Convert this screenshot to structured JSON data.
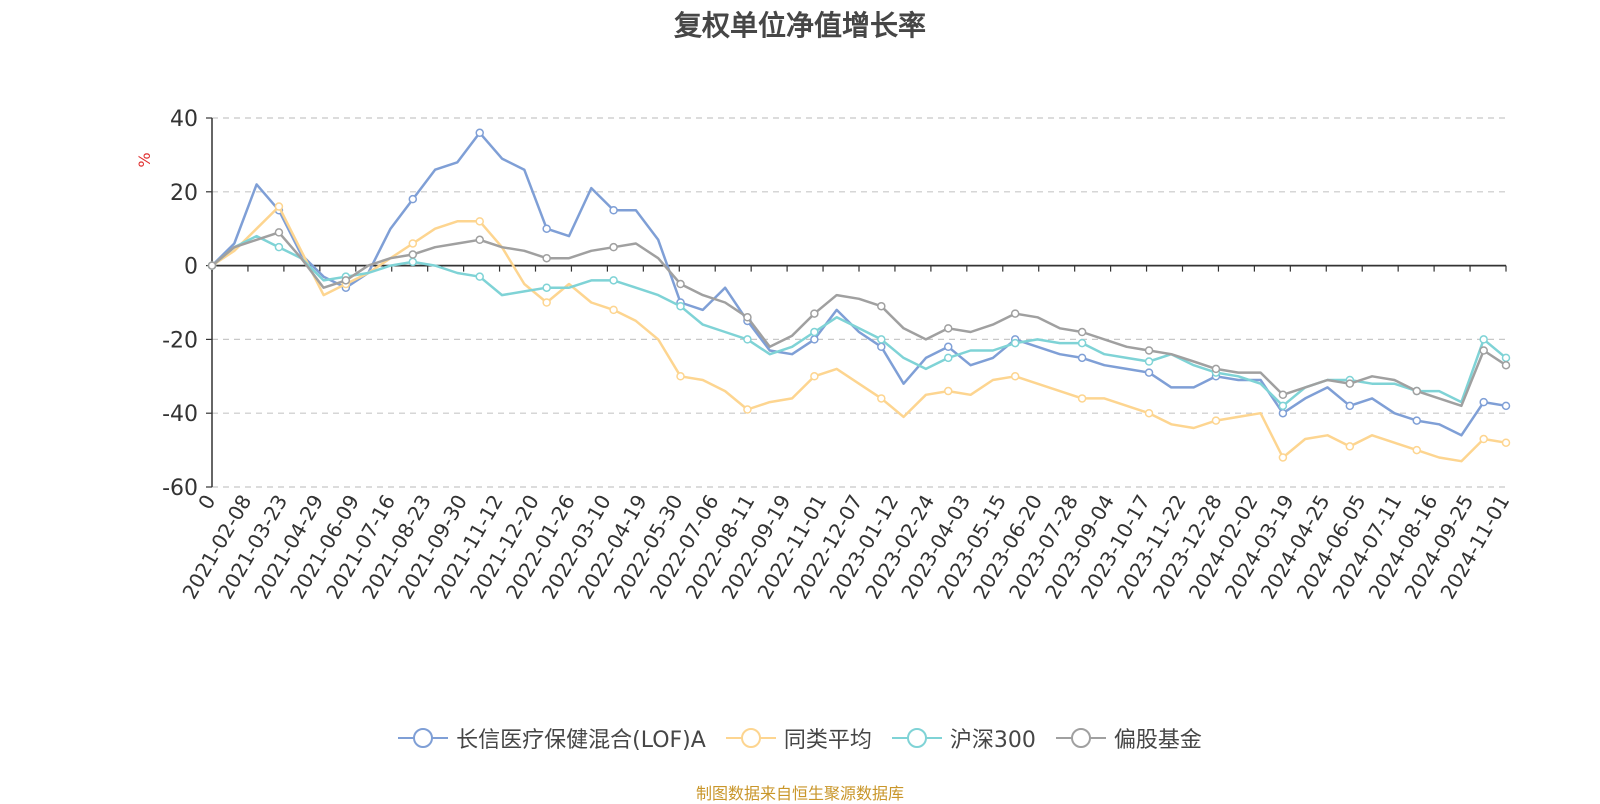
{
  "page": {
    "title": "复权单位净值增长率",
    "source": "制图数据来自恒生聚源数据库"
  },
  "chart_data": {
    "type": "line",
    "title": "复权单位净值增长率",
    "ylabel": "%",
    "xlabel": "",
    "ylim": [
      -60,
      40
    ],
    "yticks": [
      40,
      20,
      0,
      -20,
      -40,
      -60
    ],
    "grid": true,
    "legend_position": "bottom",
    "x_tick_labels": [
      "0",
      "2021-02-08",
      "2021-03-23",
      "2021-04-29",
      "2021-06-09",
      "2021-07-16",
      "2021-08-23",
      "2021-09-30",
      "2021-11-12",
      "2021-12-20",
      "2022-01-26",
      "2022-03-10",
      "2022-04-19",
      "2022-05-30",
      "2022-07-06",
      "2022-08-11",
      "2022-09-19",
      "2022-11-01",
      "2022-12-07",
      "2023-01-12",
      "2023-02-24",
      "2023-04-03",
      "2023-05-15",
      "2023-06-20",
      "2023-07-28",
      "2023-09-04",
      "2023-10-17",
      "2023-11-22",
      "2023-12-28",
      "2024-02-02",
      "2024-03-19",
      "2024-04-25",
      "2024-06-05",
      "2024-07-11",
      "2024-08-16",
      "2024-09-25",
      "2024-11-01"
    ],
    "series": [
      {
        "name": "长信医疗保健混合(LOF)A",
        "color": "#7f9fd6",
        "values": [
          0,
          6,
          22,
          15,
          3,
          -3,
          -6,
          -2,
          10,
          18,
          26,
          28,
          36,
          29,
          26,
          10,
          8,
          21,
          15,
          15,
          7,
          -10,
          -12,
          -6,
          -15,
          -23,
          -24,
          -20,
          -12,
          -18,
          -22,
          -32,
          -25,
          -22,
          -27,
          -25,
          -20,
          -22,
          -24,
          -25,
          -27,
          -28,
          -29,
          -33,
          -33,
          -30,
          -31,
          -31,
          -40,
          -36,
          -33,
          -38,
          -36,
          -40,
          -42,
          -43,
          -46,
          -37,
          -38
        ]
      },
      {
        "name": "同类平均",
        "color": "#fdd590",
        "values": [
          0,
          4,
          10,
          16,
          4,
          -8,
          -5,
          -2,
          2,
          6,
          10,
          12,
          12,
          5,
          -5,
          -10,
          -5,
          -10,
          -12,
          -15,
          -20,
          -30,
          -31,
          -34,
          -39,
          -37,
          -36,
          -30,
          -28,
          -32,
          -36,
          -41,
          -35,
          -34,
          -35,
          -31,
          -30,
          -32,
          -34,
          -36,
          -36,
          -38,
          -40,
          -43,
          -44,
          -42,
          -41,
          -40,
          -52,
          -47,
          -46,
          -49,
          -46,
          -48,
          -50,
          -52,
          -53,
          -47,
          -48
        ]
      },
      {
        "name": "沪深300",
        "color": "#7fd3d6",
        "values": [
          0,
          5,
          8,
          5,
          2,
          -4,
          -3,
          -2,
          0,
          1,
          0,
          -2,
          -3,
          -8,
          -7,
          -6,
          -6,
          -4,
          -4,
          -6,
          -8,
          -11,
          -16,
          -18,
          -20,
          -24,
          -22,
          -18,
          -14,
          -17,
          -20,
          -25,
          -28,
          -25,
          -23,
          -23,
          -21,
          -20,
          -21,
          -21,
          -24,
          -25,
          -26,
          -24,
          -27,
          -29,
          -30,
          -32,
          -38,
          -33,
          -31,
          -31,
          -32,
          -32,
          -34,
          -34,
          -37,
          -20,
          -25
        ]
      },
      {
        "name": "偏股基金",
        "color": "#a0a0a0",
        "values": [
          0,
          5,
          7,
          9,
          2,
          -6,
          -4,
          0,
          2,
          3,
          5,
          6,
          7,
          5,
          4,
          2,
          2,
          4,
          5,
          6,
          2,
          -5,
          -8,
          -10,
          -14,
          -22,
          -19,
          -13,
          -8,
          -9,
          -11,
          -17,
          -20,
          -17,
          -18,
          -16,
          -13,
          -14,
          -17,
          -18,
          -20,
          -22,
          -23,
          -24,
          -26,
          -28,
          -29,
          -29,
          -35,
          -33,
          -31,
          -32,
          -30,
          -31,
          -34,
          -36,
          -38,
          -23,
          -27
        ]
      }
    ]
  }
}
